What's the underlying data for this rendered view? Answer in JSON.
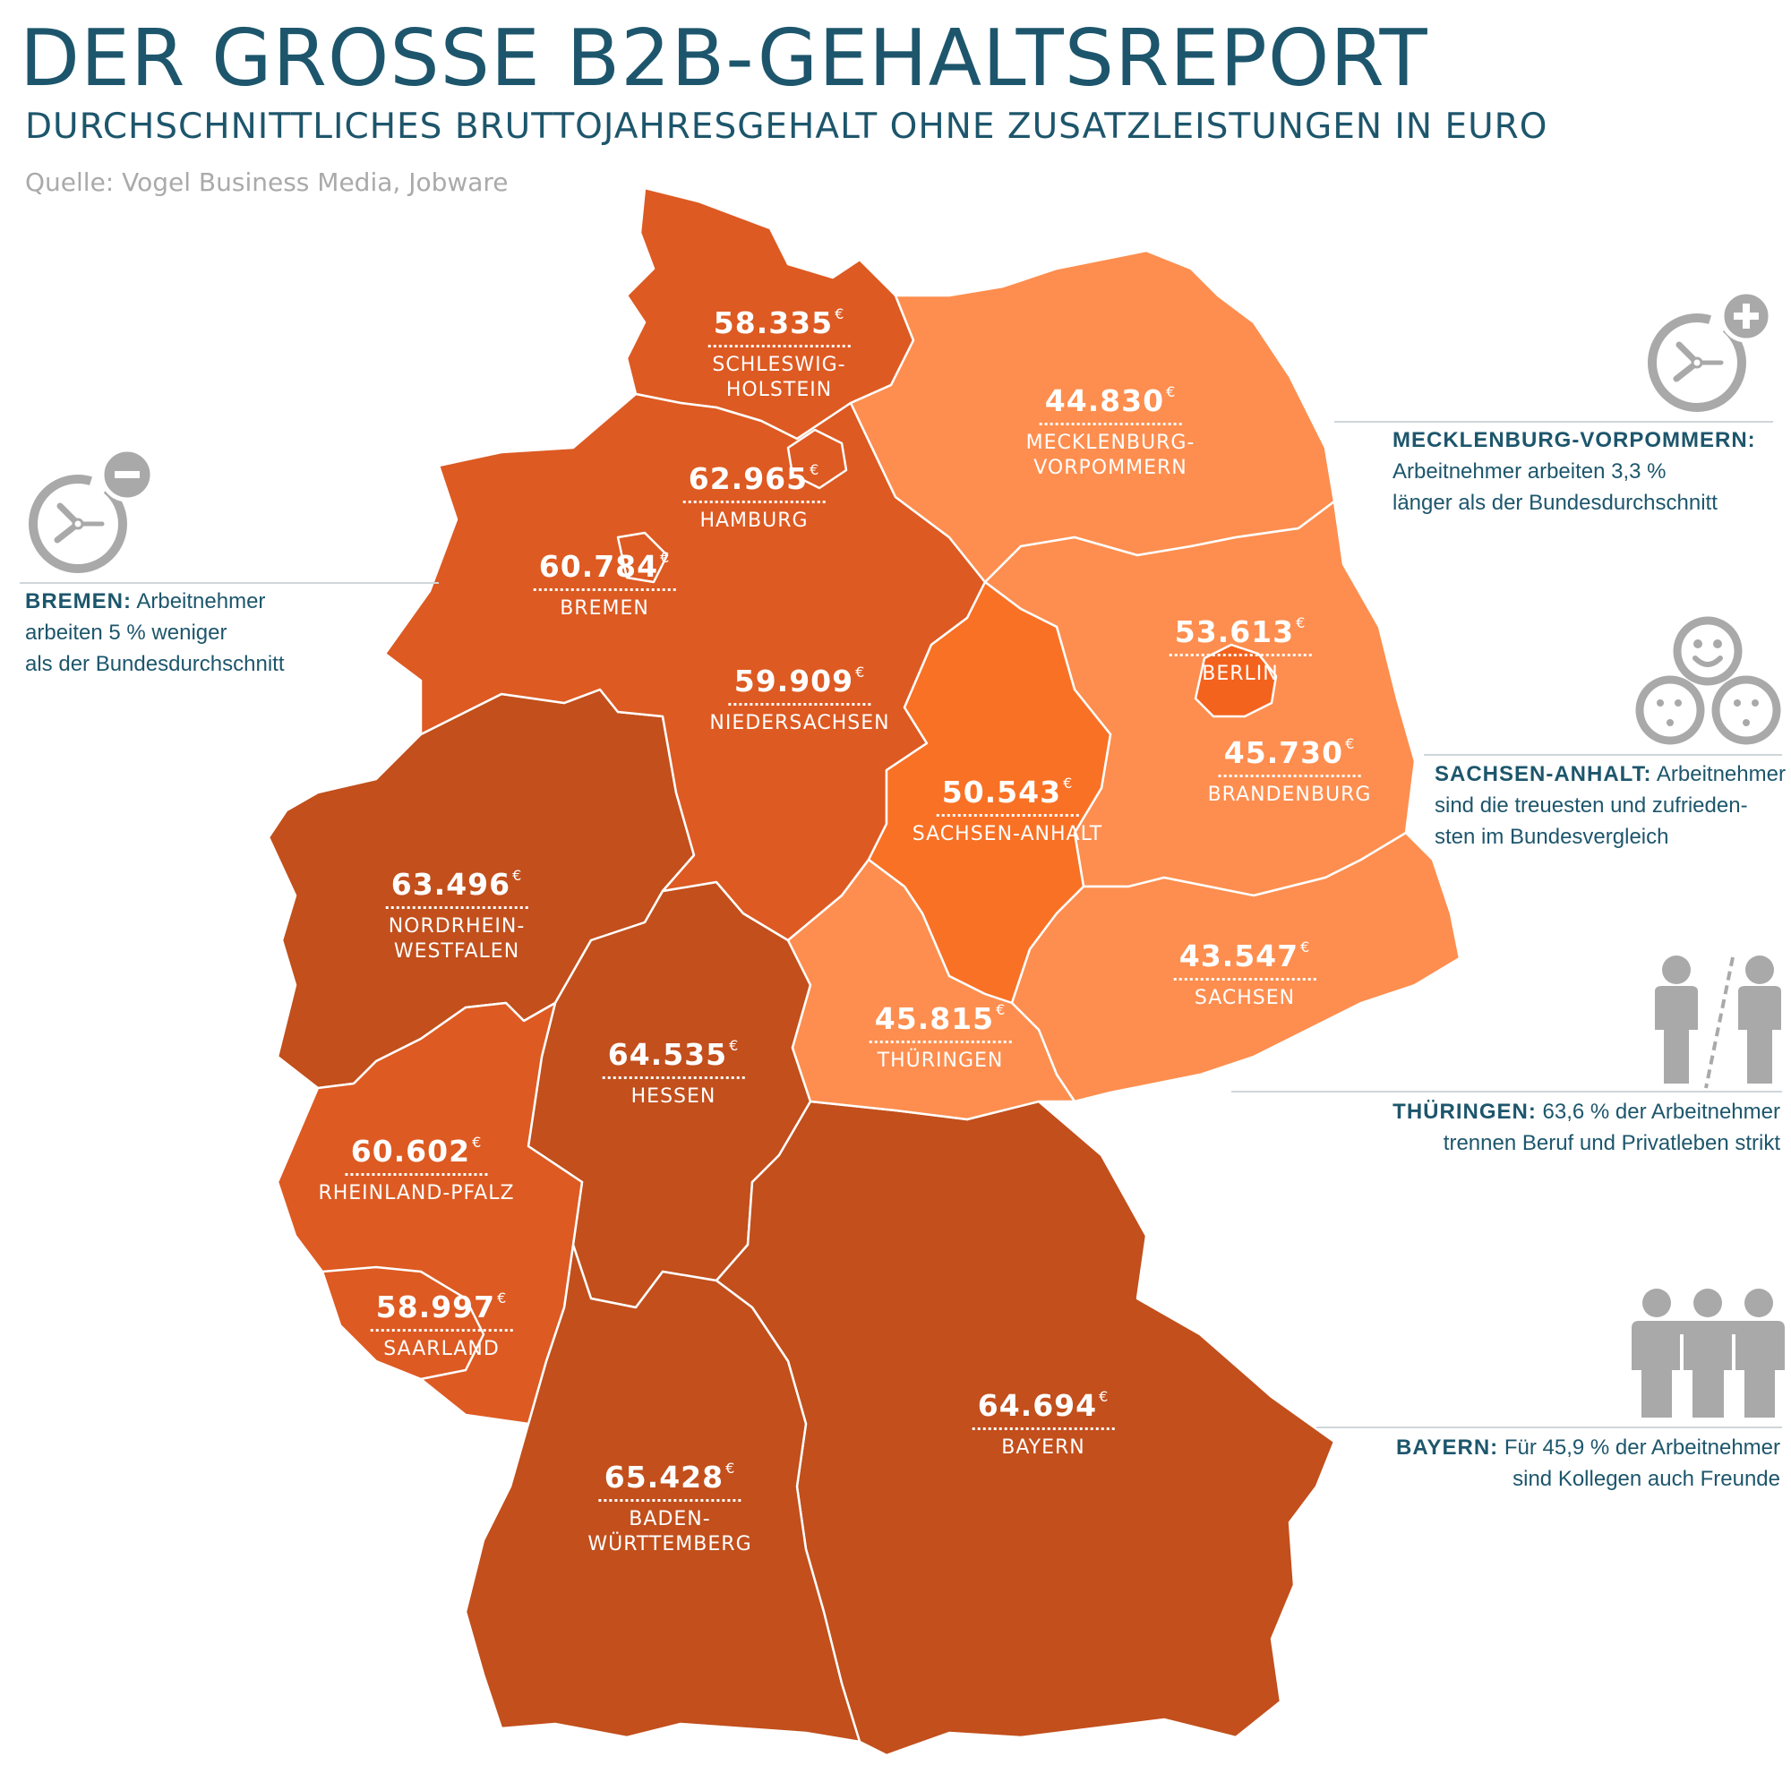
{
  "header": {
    "title": "DER GROSSE B2B-GEHALTSREPORT",
    "subtitle": "DURCHSCHNITTLICHES BRUTTOJAHRESGEHALT OHNE ZUSATZLEISTUNGEN IN EURO",
    "source": "Quelle: Vogel Business Media, Jobware"
  },
  "colors": {
    "west": "#c24f1c",
    "north_west": "#dd5a22",
    "sachsen_anhalt": "#f97125",
    "east": "#fd8e4f",
    "berlin": "#f3631e",
    "text_blue": "#1d566c",
    "icon_grey": "#a9a9a9"
  },
  "currency_symbol": "€",
  "states": {
    "schleswig_holstein": {
      "value": "58.335",
      "name_lines": [
        "SCHLESWIG-",
        "HOLSTEIN"
      ]
    },
    "hamburg": {
      "value": "62.965",
      "name_lines": [
        "HAMBURG"
      ]
    },
    "bremen": {
      "value": "60.784",
      "name_lines": [
        "BREMEN"
      ]
    },
    "niedersachsen": {
      "value": "59.909",
      "name_lines": [
        "NIEDERSACHSEN"
      ]
    },
    "mecklenburg_vorpommern": {
      "value": "44.830",
      "name_lines": [
        "MECKLENBURG-",
        "VORPOMMERN"
      ]
    },
    "berlin": {
      "value": "53.613",
      "name_lines": [
        "BERLIN"
      ]
    },
    "brandenburg": {
      "value": "45.730",
      "name_lines": [
        "BRANDENBURG"
      ]
    },
    "sachsen_anhalt": {
      "value": "50.543",
      "name_lines": [
        "SACHSEN-ANHALT"
      ]
    },
    "nordrhein_westfalen": {
      "value": "63.496",
      "name_lines": [
        "NORDRHEIN-",
        "WESTFALEN"
      ]
    },
    "sachsen": {
      "value": "43.547",
      "name_lines": [
        "SACHSEN"
      ]
    },
    "thueringen": {
      "value": "45.815",
      "name_lines": [
        "THÜRINGEN"
      ]
    },
    "hessen": {
      "value": "64.535",
      "name_lines": [
        "HESSEN"
      ]
    },
    "rheinland_pfalz": {
      "value": "60.602",
      "name_lines": [
        "RHEINLAND-PFALZ"
      ]
    },
    "saarland": {
      "value": "58.997",
      "name_lines": [
        "SAARLAND"
      ]
    },
    "bayern": {
      "value": "64.694",
      "name_lines": [
        "BAYERN"
      ]
    },
    "baden_wuerttemberg": {
      "value": "65.428",
      "name_lines": [
        "BADEN-",
        "WÜRTTEMBERG"
      ]
    }
  },
  "notes": {
    "bremen": {
      "lead": "BREMEN:",
      "lines": [
        "Arbeitnehmer",
        "arbeiten 5 % weniger",
        "als der Bundesdurchschnitt"
      ],
      "icon": "clock-minus-icon"
    },
    "mecklenburg_vorpommern": {
      "lead": "MECKLENBURG-VORPOMMERN:",
      "lines": [
        "Arbeitnehmer arbeiten 3,3 %",
        "länger als der Bundesdurchschnitt"
      ],
      "icon": "clock-plus-icon"
    },
    "sachsen_anhalt": {
      "lead": "SACHSEN-ANHALT:",
      "lines": [
        "Arbeitnehmer",
        "sind die treuesten und zufrieden-",
        "sten im Bundesvergleich"
      ],
      "icon": "smiley-faces-icon"
    },
    "thueringen": {
      "lead": "THÜRINGEN:",
      "lines": [
        "63,6 % der Arbeitnehmer",
        "trennen Beruf und Privatleben strikt"
      ],
      "icon": "separated-people-icon"
    },
    "bayern": {
      "lead": "BAYERN:",
      "lines": [
        "Für 45,9 % der Arbeitnehmer",
        "sind Kollegen auch Freunde"
      ],
      "icon": "group-people-icon"
    }
  }
}
